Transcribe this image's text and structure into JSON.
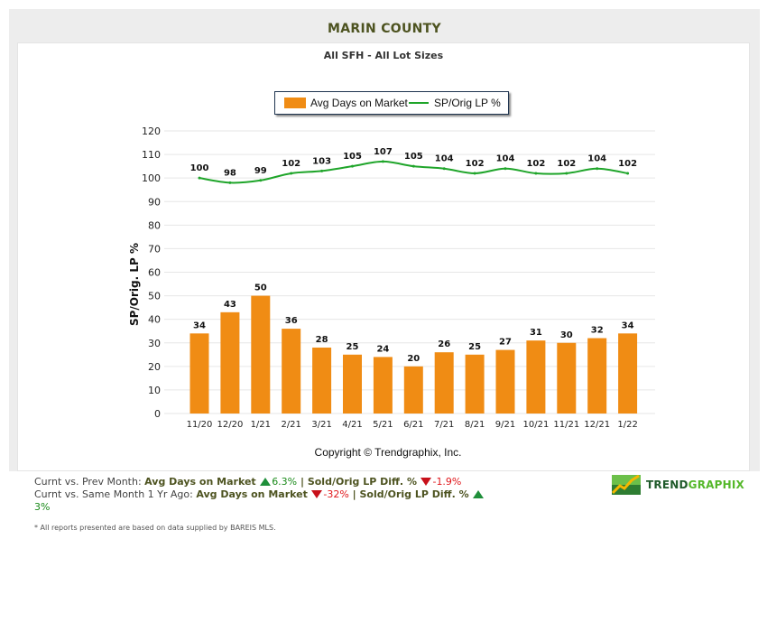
{
  "header": {
    "county": "MARIN COUNTY",
    "subtitle": "All SFH - All Lot Sizes"
  },
  "legend": {
    "items": [
      {
        "label": "Avg Days on Market",
        "type": "bar",
        "color": "#f08c14"
      },
      {
        "label": "SP/Orig LP %",
        "type": "line",
        "color": "#1fa52a"
      }
    ]
  },
  "chart_data": {
    "type": "bar",
    "title": "All SFH - All Lot Sizes",
    "xlabel": "",
    "ylabel": "SP/Orig. LP %",
    "ylim": [
      0,
      120
    ],
    "yticks": [
      0,
      10,
      20,
      30,
      40,
      50,
      60,
      70,
      80,
      90,
      100,
      110,
      120
    ],
    "grid": true,
    "legend_position": "top-center",
    "categories": [
      "11/20",
      "12/20",
      "1/21",
      "2/21",
      "3/21",
      "4/21",
      "5/21",
      "6/21",
      "7/21",
      "8/21",
      "9/21",
      "10/21",
      "11/21",
      "12/21",
      "1/22"
    ],
    "series": [
      {
        "name": "Avg Days on Market",
        "type": "bar",
        "color": "#f08c14",
        "values": [
          34,
          43,
          50,
          36,
          28,
          25,
          24,
          20,
          26,
          25,
          27,
          31,
          30,
          32,
          34
        ]
      },
      {
        "name": "SP/Orig LP %",
        "type": "line",
        "color": "#1fa52a",
        "values": [
          100,
          98,
          99,
          102,
          103,
          105,
          107,
          105,
          104,
          102,
          104,
          102,
          102,
          104,
          102
        ]
      }
    ]
  },
  "copyright": "Copyright © Trendgraphix, Inc.",
  "stats": {
    "line1_prefix": "Curnt vs. Prev Month: ",
    "line1_metric1": "Avg Days on Market",
    "line1_value1": "6.3%",
    "line1_dir1": "up",
    "line1_sep": " | ",
    "line1_metric2": "Sold/Orig LP Diff. %",
    "line1_value2": "-1.9%",
    "line1_dir2": "down",
    "line2_prefix": "Curnt vs. Same Month 1 Yr Ago: ",
    "line2_metric1": "Avg Days on Market",
    "line2_value1": "-32%",
    "line2_dir1": "down",
    "line2_sep": " | ",
    "line2_metric2": "Sold/Orig LP Diff. %",
    "line2_value2": "3%",
    "line2_dir2": "up"
  },
  "footnote": "* All reports presented are based on data supplied by BAREIS MLS.",
  "logo": {
    "part1": "TREND",
    "part2": "GRAPHIX"
  }
}
